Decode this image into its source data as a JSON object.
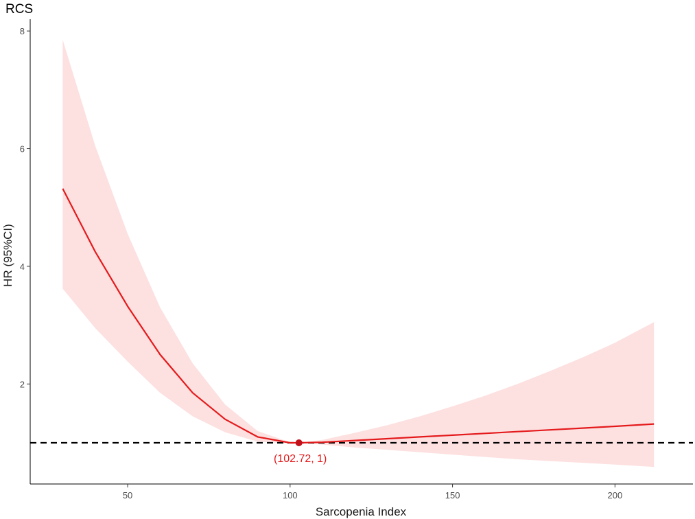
{
  "chart_data": {
    "type": "line",
    "title": "RCS",
    "xlabel": "Sarcopenia Index",
    "ylabel": "HR (95%CI)",
    "xlim": [
      20,
      224
    ],
    "ylim": [
      0.3,
      8.2
    ],
    "x_ticks": [
      50,
      100,
      150,
      200
    ],
    "y_ticks": [
      2,
      4,
      6,
      8
    ],
    "grid": false,
    "legend": "none",
    "x": [
      30,
      40,
      50,
      60,
      70,
      80,
      90,
      100,
      102.72,
      110,
      120,
      130,
      140,
      150,
      160,
      170,
      180,
      190,
      200,
      212
    ],
    "series": [
      {
        "values": [
          5.32,
          4.25,
          3.32,
          2.5,
          1.85,
          1.4,
          1.1,
          1.0,
          1.0,
          1.01,
          1.04,
          1.07,
          1.1,
          1.13,
          1.16,
          1.19,
          1.22,
          1.25,
          1.28,
          1.32
        ],
        "lower": [
          3.62,
          2.95,
          2.38,
          1.85,
          1.45,
          1.18,
          1.02,
          0.99,
          1.0,
          0.97,
          0.92,
          0.88,
          0.84,
          0.8,
          0.76,
          0.72,
          0.69,
          0.66,
          0.63,
          0.59
        ],
        "upper": [
          7.85,
          6.05,
          4.55,
          3.3,
          2.35,
          1.65,
          1.2,
          1.01,
          1.0,
          1.05,
          1.17,
          1.3,
          1.45,
          1.62,
          1.8,
          2.0,
          2.22,
          2.45,
          2.7,
          3.05
        ]
      }
    ],
    "reference_line": {
      "y": 1,
      "style": "dashed",
      "color": "#000000"
    },
    "highlight_point": {
      "x": 102.72,
      "y": 1,
      "label": "(102.72, 1)"
    },
    "colors": {
      "line": "#e41a1c",
      "ribbon": "#fde0e0",
      "point": "#c0101a",
      "annotation": "#e41a1c"
    }
  }
}
